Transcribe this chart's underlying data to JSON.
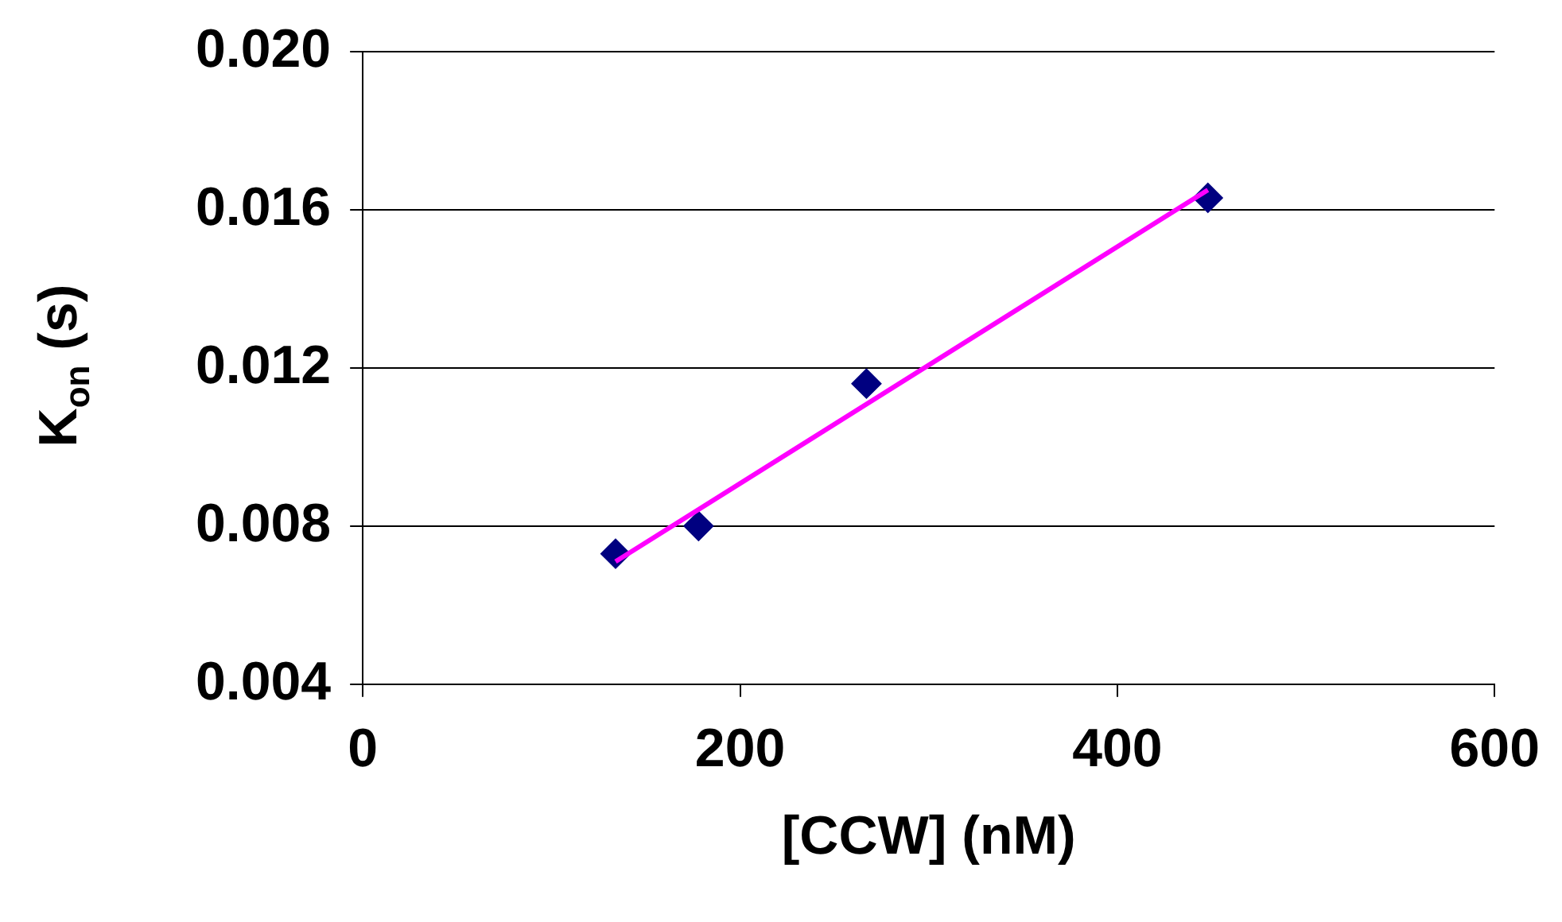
{
  "chart_data": {
    "type": "scatter",
    "xlabel": "[CCW] (nM)",
    "ylabel": "K$_{on}$ (s)",
    "xlim": [
      0,
      600
    ],
    "xticks": [
      0,
      200,
      400,
      600
    ],
    "ylim": [
      0.004,
      0.02
    ],
    "yticks": [
      {
        "value": 0.004,
        "label": "0.004"
      },
      {
        "value": 0.008,
        "label": "0.008"
      },
      {
        "value": 0.012,
        "label": "0.012"
      },
      {
        "value": 0.016,
        "label": "0.016"
      },
      {
        "value": 0.02,
        "label": "0.020"
      }
    ],
    "grid": "y",
    "legend": false,
    "series": [
      {
        "color": "#000080",
        "marker": "diamond",
        "x": [
          134,
          178,
          267,
          448
        ],
        "values": [
          0.0073,
          0.008,
          0.0116,
          0.0163
        ]
      },
      {
        "type": "line",
        "color": "#ff00ff",
        "marker": "none",
        "line_style": "solid",
        "x": [
          134,
          448
        ],
        "values": [
          0.0071,
          0.0165
        ]
      }
    ]
  }
}
